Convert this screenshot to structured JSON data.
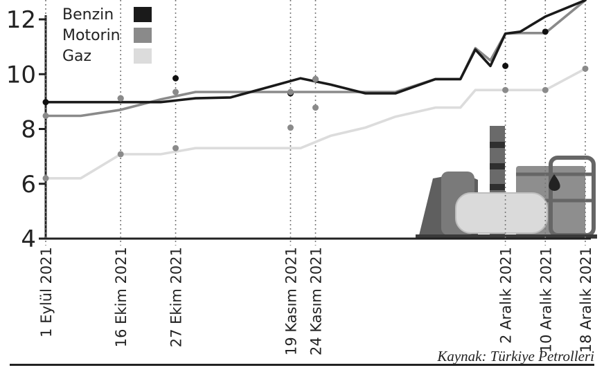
{
  "chart_data": {
    "type": "line",
    "title": "",
    "xlabel": "",
    "ylabel": "",
    "ylim": [
      4,
      12
    ],
    "yticks": [
      4,
      6,
      8,
      10,
      12
    ],
    "x_day_index": [
      0,
      7,
      15,
      23,
      30,
      37,
      45,
      51,
      57,
      64,
      70,
      78,
      83,
      86,
      89,
      92,
      95,
      100,
      108
    ],
    "tick_day_index": [
      0,
      15,
      26,
      49,
      54,
      92,
      100,
      108
    ],
    "tick_labels": [
      "1 Eylül 2021",
      "16 Ekim 2021",
      "27 Ekim 2021",
      "19 Kasım 2021",
      "24 Kasım 2021",
      "2 Aralık 2021",
      "10 Aralık 2021",
      "18 Aralık 2021"
    ],
    "series": [
      {
        "name": "Benzin",
        "color": "#1a1a1a",
        "values": [
          8.98,
          8.98,
          8.98,
          8.98,
          9.12,
          9.15,
          9.55,
          9.85,
          9.62,
          9.3,
          9.3,
          9.82,
          9.82,
          10.9,
          10.3,
          11.48,
          11.55,
          12.1,
          12.7
        ]
      },
      {
        "name": "Motorin",
        "color": "#8a8a8a",
        "values": [
          8.48,
          8.48,
          8.7,
          9.08,
          9.35,
          9.35,
          9.35,
          9.35,
          9.35,
          9.35,
          9.35,
          9.82,
          9.82,
          10.95,
          10.5,
          11.48,
          11.5,
          11.5,
          12.7
        ]
      },
      {
        "name": "Gaz",
        "color": "#dcdcdc",
        "values": [
          6.2,
          6.2,
          7.08,
          7.08,
          7.3,
          7.3,
          7.3,
          7.3,
          7.75,
          8.05,
          8.45,
          8.78,
          8.78,
          9.42,
          9.42,
          9.42,
          9.42,
          9.42,
          10.2
        ]
      }
    ],
    "markers": [
      {
        "series": "Benzin",
        "x_day_index": 0,
        "y": 8.98
      },
      {
        "series": "Benzin",
        "x_day_index": 15,
        "y": 9.12
      },
      {
        "series": "Benzin",
        "x_day_index": 26,
        "y": 9.85
      },
      {
        "series": "Benzin",
        "x_day_index": 49,
        "y": 9.3
      },
      {
        "series": "Benzin",
        "x_day_index": 54,
        "y": 9.82
      },
      {
        "series": "Benzin",
        "x_day_index": 92,
        "y": 10.3
      },
      {
        "series": "Benzin",
        "x_day_index": 100,
        "y": 11.55
      },
      {
        "series": "Motorin",
        "x_day_index": 0,
        "y": 8.48
      },
      {
        "series": "Motorin",
        "x_day_index": 15,
        "y": 9.12
      },
      {
        "series": "Motorin",
        "x_day_index": 26,
        "y": 9.35
      },
      {
        "series": "Motorin",
        "x_day_index": 49,
        "y": 9.35
      },
      {
        "series": "Motorin",
        "x_day_index": 54,
        "y": 9.82
      },
      {
        "series": "Motorin",
        "x_day_index": 92,
        "y": 9.42
      },
      {
        "series": "Motorin",
        "x_day_index": 100,
        "y": 9.42
      },
      {
        "series": "Motorin",
        "x_day_index": 108,
        "y": 10.2
      },
      {
        "series": "Gaz",
        "x_day_index": 0,
        "y": 6.2
      },
      {
        "series": "Gaz",
        "x_day_index": 15,
        "y": 7.08
      },
      {
        "series": "Gaz",
        "x_day_index": 26,
        "y": 7.3
      },
      {
        "series": "Gaz",
        "x_day_index": 49,
        "y": 8.05
      },
      {
        "series": "Gaz",
        "x_day_index": 54,
        "y": 8.78
      }
    ],
    "legend": {
      "position": "top-left",
      "entries": [
        "Benzin",
        "Motorin",
        "Gaz"
      ]
    },
    "grid": false,
    "decoration": "refinery-illustration"
  },
  "source": "Kaynak: Türkiye Petrolleri"
}
